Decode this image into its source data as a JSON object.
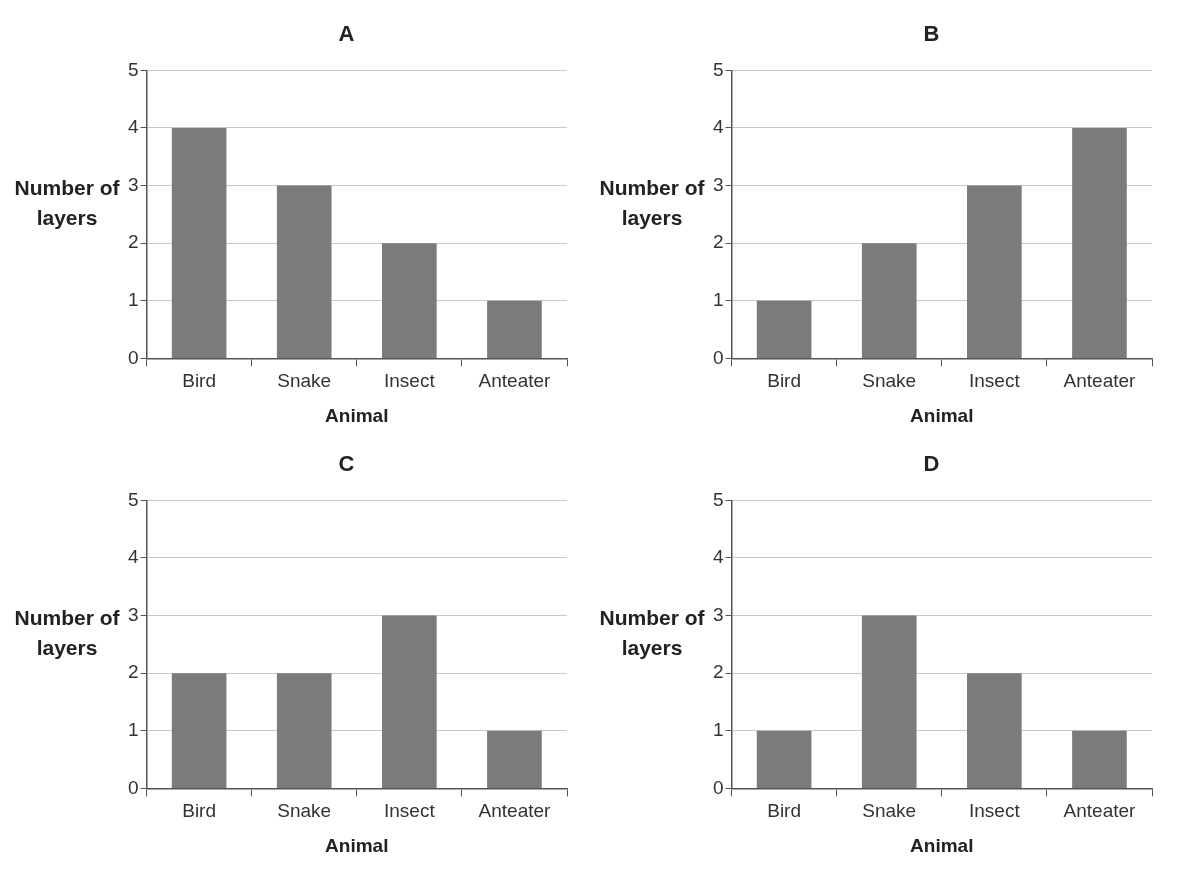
{
  "chart_data": [
    {
      "type": "bar",
      "title": "A",
      "xlabel": "Animal",
      "ylabel": "Number of layers",
      "categories": [
        "Bird",
        "Snake",
        "Insect",
        "Anteater"
      ],
      "values": [
        4,
        3,
        2,
        1
      ],
      "color": "#7b7b7b",
      "ylim": [
        0,
        5
      ],
      "yticks": [
        0,
        1,
        2,
        3,
        4,
        5
      ],
      "grid": "y"
    },
    {
      "type": "bar",
      "title": "B",
      "xlabel": "Animal",
      "ylabel": "Number of layers",
      "categories": [
        "Bird",
        "Snake",
        "Insect",
        "Anteater"
      ],
      "values": [
        1,
        2,
        3,
        4
      ],
      "color": "#7b7b7b",
      "ylim": [
        0,
        5
      ],
      "yticks": [
        0,
        1,
        2,
        3,
        4,
        5
      ],
      "grid": "y"
    },
    {
      "type": "bar",
      "title": "C",
      "xlabel": "Animal",
      "ylabel": "Number of layers",
      "categories": [
        "Bird",
        "Snake",
        "Insect",
        "Anteater"
      ],
      "values": [
        2,
        2,
        3,
        1
      ],
      "color": "#7b7b7b",
      "ylim": [
        0,
        5
      ],
      "yticks": [
        0,
        1,
        2,
        3,
        4,
        5
      ],
      "grid": "y"
    },
    {
      "type": "bar",
      "title": "D",
      "xlabel": "Animal",
      "ylabel": "Number of layers",
      "categories": [
        "Bird",
        "Snake",
        "Insect",
        "Anteater"
      ],
      "values": [
        1,
        3,
        2,
        1
      ],
      "color": "#7b7b7b",
      "ylim": [
        0,
        5
      ],
      "yticks": [
        0,
        1,
        2,
        3,
        4,
        5
      ],
      "grid": "y"
    }
  ]
}
